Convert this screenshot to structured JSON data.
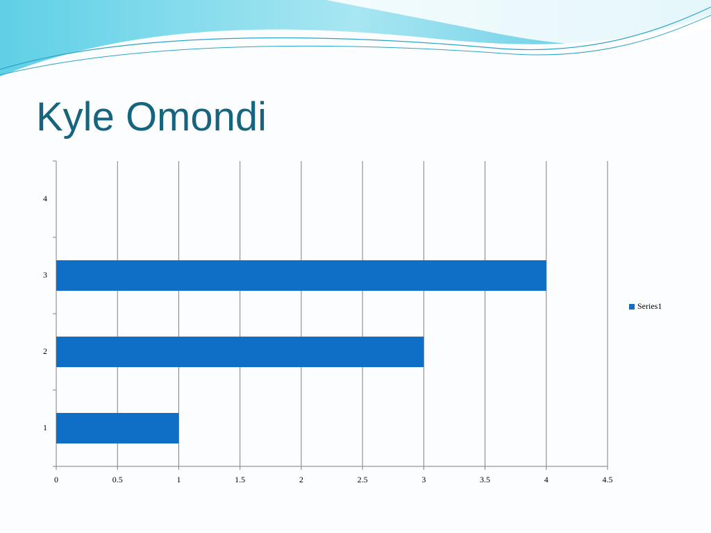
{
  "chart_data": {
    "type": "barh",
    "title": "Kyle Omondi",
    "categories": [
      "1",
      "2",
      "3",
      "4"
    ],
    "series": [
      {
        "name": "Series1",
        "color": "#0f6fc6",
        "values": [
          1,
          3,
          4,
          null
        ]
      }
    ],
    "xlim": [
      0,
      4.5
    ],
    "xticks": [
      0,
      0.5,
      1,
      1.5,
      2,
      2.5,
      3,
      3.5,
      4,
      4.5
    ],
    "grid": true,
    "legend": "right"
  }
}
